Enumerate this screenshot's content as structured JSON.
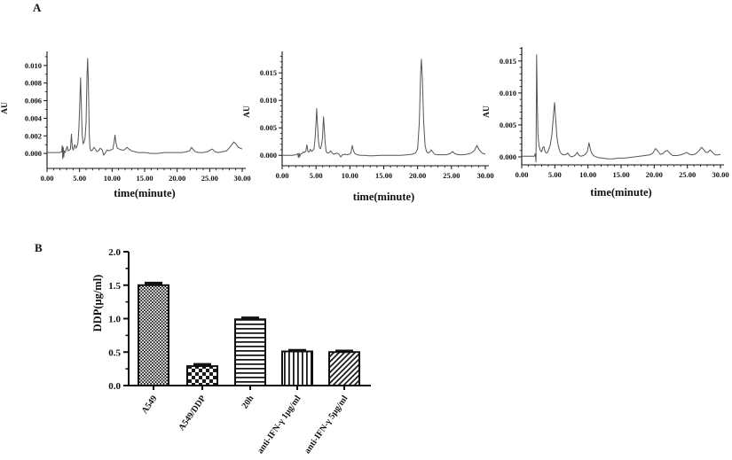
{
  "figure": {
    "panel_a_label": "A",
    "panel_b_label": "B"
  },
  "colors": {
    "trace": "#555555",
    "axis": "#111111",
    "text": "#111111",
    "pattern_ink": "#1a1a1a",
    "background": "#ffffff"
  },
  "chart_data": [
    {
      "id": "chromatogram-1",
      "type": "line",
      "xlabel": "time(minute)",
      "ylabel": "AU",
      "xlim": [
        0,
        30
      ],
      "xtick_values": [
        0,
        5,
        10,
        15,
        20,
        25,
        30
      ],
      "xtick_labels": [
        "0.00",
        "5.00",
        "10.00",
        "15.00",
        "20.00",
        "25.00",
        "30.00"
      ],
      "x_minor_step": 1,
      "ylim": [
        -0.0017,
        0.0116
      ],
      "ytick_values": [
        0,
        0.002,
        0.004,
        0.006,
        0.008,
        0.01
      ],
      "ytick_labels": [
        "0.000",
        "0.002",
        "0.004",
        "0.006",
        "0.008",
        "0.010"
      ],
      "y_minor_step": 0.001,
      "points": [
        [
          0,
          0.0001
        ],
        [
          0.5,
          0.0001
        ],
        [
          1.0,
          0.0001
        ],
        [
          1.5,
          0.0001
        ],
        [
          2.0,
          0.0001
        ],
        [
          2.25,
          0.0002
        ],
        [
          2.35,
          0.0009
        ],
        [
          2.42,
          -0.0006
        ],
        [
          2.5,
          0.0007
        ],
        [
          2.58,
          -0.0004
        ],
        [
          2.65,
          0.0003
        ],
        [
          2.8,
          0.0001
        ],
        [
          3.0,
          0.0006
        ],
        [
          3.1,
          0.0008
        ],
        [
          3.25,
          0.0003
        ],
        [
          3.45,
          0.0004
        ],
        [
          3.6,
          0.0005
        ],
        [
          3.75,
          0.0022
        ],
        [
          3.9,
          0.0006
        ],
        [
          4.05,
          0.0004
        ],
        [
          4.25,
          0.001
        ],
        [
          4.45,
          0.0006
        ],
        [
          4.6,
          0.0008
        ],
        [
          4.75,
          0.0012
        ],
        [
          4.9,
          0.0028
        ],
        [
          5.05,
          0.006
        ],
        [
          5.15,
          0.0086
        ],
        [
          5.25,
          0.006
        ],
        [
          5.4,
          0.0022
        ],
        [
          5.55,
          0.0011
        ],
        [
          5.7,
          0.0013
        ],
        [
          5.85,
          0.0018
        ],
        [
          6.0,
          0.0035
        ],
        [
          6.15,
          0.009
        ],
        [
          6.25,
          0.0108
        ],
        [
          6.35,
          0.008
        ],
        [
          6.5,
          0.002
        ],
        [
          6.6,
          0.0006
        ],
        [
          6.75,
          0.0003
        ],
        [
          7.0,
          0.0004
        ],
        [
          7.2,
          0.0007
        ],
        [
          7.45,
          0.0005
        ],
        [
          7.65,
          0.0002
        ],
        [
          7.9,
          0.0003
        ],
        [
          8.2,
          0.0006
        ],
        [
          8.5,
          0.0004
        ],
        [
          8.7,
          -0.0002
        ],
        [
          8.9,
          0.0
        ],
        [
          9.2,
          0.0004
        ],
        [
          9.5,
          0.0003
        ],
        [
          9.8,
          0.0004
        ],
        [
          10.1,
          0.0005
        ],
        [
          10.3,
          0.0012
        ],
        [
          10.45,
          0.0021
        ],
        [
          10.6,
          0.0012
        ],
        [
          10.8,
          0.0006
        ],
        [
          11.1,
          0.0005
        ],
        [
          11.5,
          0.0004
        ],
        [
          11.9,
          0.0004
        ],
        [
          12.3,
          0.0007
        ],
        [
          12.6,
          0.0005
        ],
        [
          13.0,
          0.0003
        ],
        [
          13.5,
          0.0002
        ],
        [
          14.0,
          0.0001
        ],
        [
          15.0,
          0.0001
        ],
        [
          16.0,
          0.0
        ],
        [
          17.0,
          0.0
        ],
        [
          18.0,
          0.0001
        ],
        [
          19.0,
          0.0001
        ],
        [
          20.0,
          0.0001
        ],
        [
          20.8,
          0.0001
        ],
        [
          21.5,
          0.0002
        ],
        [
          21.9,
          0.0003
        ],
        [
          22.2,
          0.0007
        ],
        [
          22.5,
          0.0004
        ],
        [
          22.8,
          0.0002
        ],
        [
          23.3,
          0.0001
        ],
        [
          24.0,
          0.0001
        ],
        [
          24.7,
          0.0002
        ],
        [
          25.1,
          0.0004
        ],
        [
          25.4,
          0.0005
        ],
        [
          25.8,
          0.0002
        ],
        [
          26.3,
          0.0001
        ],
        [
          27.0,
          0.0002
        ],
        [
          27.6,
          0.0003
        ],
        [
          28.2,
          0.0008
        ],
        [
          28.7,
          0.0013
        ],
        [
          29.0,
          0.0011
        ],
        [
          29.4,
          0.0007
        ],
        [
          29.7,
          0.0006
        ],
        [
          30,
          0.0005
        ]
      ]
    },
    {
      "id": "chromatogram-2",
      "type": "line",
      "xlabel": "time(minute)",
      "ylabel": "AU",
      "xlim": [
        0,
        30
      ],
      "xtick_values": [
        0,
        5,
        10,
        15,
        20,
        25,
        30
      ],
      "xtick_labels": [
        "0.00",
        "5.00",
        "10.00",
        "15.00",
        "20.00",
        "25.00",
        "30.00"
      ],
      "x_minor_step": 1,
      "ylim": [
        -0.0019,
        0.0189
      ],
      "ytick_values": [
        0,
        0.005,
        0.01,
        0.015
      ],
      "ytick_labels": [
        "0.000",
        "0.005",
        "0.010",
        "0.015"
      ],
      "y_minor_step": 0.001,
      "points": [
        [
          0,
          0.0
        ],
        [
          0.5,
          0.0
        ],
        [
          1.0,
          0.0
        ],
        [
          1.5,
          0.0
        ],
        [
          2.0,
          0.0001
        ],
        [
          2.3,
          0.0003
        ],
        [
          2.4,
          -0.0004
        ],
        [
          2.5,
          0.0004
        ],
        [
          2.6,
          -0.0003
        ],
        [
          2.7,
          0.0002
        ],
        [
          2.9,
          0.0003
        ],
        [
          3.1,
          0.0006
        ],
        [
          3.3,
          0.0005
        ],
        [
          3.5,
          0.0008
        ],
        [
          3.65,
          0.0019
        ],
        [
          3.8,
          0.0007
        ],
        [
          4.0,
          0.0006
        ],
        [
          4.15,
          0.0011
        ],
        [
          4.35,
          0.0007
        ],
        [
          4.55,
          0.0009
        ],
        [
          4.7,
          0.0012
        ],
        [
          4.85,
          0.0028
        ],
        [
          5.0,
          0.006
        ],
        [
          5.1,
          0.0085
        ],
        [
          5.2,
          0.006
        ],
        [
          5.35,
          0.0028
        ],
        [
          5.5,
          0.0014
        ],
        [
          5.65,
          0.0012
        ],
        [
          5.8,
          0.0018
        ],
        [
          5.95,
          0.003
        ],
        [
          6.1,
          0.007
        ],
        [
          6.2,
          0.0055
        ],
        [
          6.35,
          0.0022
        ],
        [
          6.5,
          0.0007
        ],
        [
          6.7,
          0.0004
        ],
        [
          6.95,
          0.0005
        ],
        [
          7.15,
          0.0008
        ],
        [
          7.4,
          0.0004
        ],
        [
          7.6,
          0.0002
        ],
        [
          7.85,
          0.0003
        ],
        [
          8.1,
          0.0004
        ],
        [
          8.4,
          0.0002
        ],
        [
          8.65,
          -0.0003
        ],
        [
          8.9,
          0.0001
        ],
        [
          9.2,
          0.0002
        ],
        [
          9.6,
          0.0001
        ],
        [
          9.9,
          0.0002
        ],
        [
          10.15,
          0.0004
        ],
        [
          10.35,
          0.0018
        ],
        [
          10.55,
          0.0008
        ],
        [
          10.75,
          0.0003
        ],
        [
          11.1,
          0.0001
        ],
        [
          11.6,
          0.0
        ],
        [
          12.2,
          0.0
        ],
        [
          12.8,
          -0.0001
        ],
        [
          13.5,
          -0.0001
        ],
        [
          14.5,
          0.0
        ],
        [
          15.5,
          0.0
        ],
        [
          16.5,
          0.0
        ],
        [
          17.5,
          0.0
        ],
        [
          18.5,
          0.0001
        ],
        [
          19.2,
          0.0002
        ],
        [
          19.7,
          0.0004
        ],
        [
          20.0,
          0.0012
        ],
        [
          20.25,
          0.006
        ],
        [
          20.45,
          0.015
        ],
        [
          20.55,
          0.0175
        ],
        [
          20.7,
          0.014
        ],
        [
          20.9,
          0.006
        ],
        [
          21.1,
          0.0018
        ],
        [
          21.3,
          0.0007
        ],
        [
          21.55,
          0.0004
        ],
        [
          21.8,
          0.0006
        ],
        [
          22.0,
          0.001
        ],
        [
          22.25,
          0.0006
        ],
        [
          22.5,
          0.0002
        ],
        [
          22.9,
          0.0001
        ],
        [
          23.5,
          0.0001
        ],
        [
          24.2,
          0.0001
        ],
        [
          24.8,
          0.0003
        ],
        [
          25.15,
          0.0007
        ],
        [
          25.5,
          0.0003
        ],
        [
          26.0,
          0.0001
        ],
        [
          26.6,
          0.0001
        ],
        [
          27.3,
          0.0002
        ],
        [
          27.9,
          0.0004
        ],
        [
          28.4,
          0.0009
        ],
        [
          28.75,
          0.0018
        ],
        [
          29.1,
          0.001
        ],
        [
          29.5,
          0.0004
        ],
        [
          30,
          0.0002
        ]
      ]
    },
    {
      "id": "chromatogram-3",
      "type": "line",
      "xlabel": "time(minute)",
      "ylabel": "AU",
      "xlim": [
        0,
        30
      ],
      "xtick_values": [
        0,
        5,
        10,
        15,
        20,
        25,
        30
      ],
      "xtick_labels": [
        "0.00",
        "5.00",
        "10.00",
        "15.00",
        "20.00",
        "25.00",
        "30.00"
      ],
      "x_minor_step": 1,
      "ylim": [
        -0.00125,
        0.0172
      ],
      "ytick_values": [
        0,
        0.005,
        0.01,
        0.015
      ],
      "ytick_labels": [
        "0.000",
        "0.005",
        "0.010",
        "0.015"
      ],
      "y_minor_step": 0.001,
      "points": [
        [
          0,
          0.0001
        ],
        [
          0.5,
          0.0001
        ],
        [
          1.0,
          0.0001
        ],
        [
          1.5,
          0.0001
        ],
        [
          1.9,
          0.0001
        ],
        [
          2.05,
          0.0005
        ],
        [
          2.15,
          -0.0008
        ],
        [
          2.25,
          0.016
        ],
        [
          2.35,
          0.009
        ],
        [
          2.45,
          0.0035
        ],
        [
          2.6,
          0.0018
        ],
        [
          2.8,
          0.001
        ],
        [
          3.0,
          0.0008
        ],
        [
          3.2,
          0.0015
        ],
        [
          3.35,
          0.0016
        ],
        [
          3.5,
          0.0009
        ],
        [
          3.7,
          0.0006
        ],
        [
          3.9,
          0.0007
        ],
        [
          4.1,
          0.0012
        ],
        [
          4.3,
          0.0018
        ],
        [
          4.55,
          0.0035
        ],
        [
          4.75,
          0.006
        ],
        [
          4.95,
          0.0085
        ],
        [
          5.1,
          0.0062
        ],
        [
          5.3,
          0.0032
        ],
        [
          5.5,
          0.0018
        ],
        [
          5.7,
          0.001
        ],
        [
          5.9,
          0.0006
        ],
        [
          6.1,
          0.0004
        ],
        [
          6.4,
          0.0003
        ],
        [
          6.7,
          0.0004
        ],
        [
          6.95,
          0.0006
        ],
        [
          7.2,
          0.0002
        ],
        [
          7.5,
          0.0
        ],
        [
          7.8,
          0.0001
        ],
        [
          8.1,
          0.0003
        ],
        [
          8.4,
          0.0007
        ],
        [
          8.6,
          0.0003
        ],
        [
          8.9,
          0.0001
        ],
        [
          9.3,
          0.0002
        ],
        [
          9.6,
          0.0004
        ],
        [
          9.9,
          0.0008
        ],
        [
          10.15,
          0.0022
        ],
        [
          10.4,
          0.001
        ],
        [
          10.65,
          0.0004
        ],
        [
          11.0,
          0.0001
        ],
        [
          11.5,
          -0.0001
        ],
        [
          12.2,
          -0.0002
        ],
        [
          13.0,
          -0.0003
        ],
        [
          13.8,
          -0.0003
        ],
        [
          14.6,
          -0.0002
        ],
        [
          15.4,
          -0.0002
        ],
        [
          16.2,
          -0.0001
        ],
        [
          17.0,
          0.0
        ],
        [
          17.8,
          0.0001
        ],
        [
          18.6,
          0.0002
        ],
        [
          19.3,
          0.0003
        ],
        [
          19.8,
          0.0006
        ],
        [
          20.2,
          0.0013
        ],
        [
          20.55,
          0.0009
        ],
        [
          20.9,
          0.0004
        ],
        [
          21.3,
          0.0005
        ],
        [
          21.7,
          0.0009
        ],
        [
          22.0,
          0.001
        ],
        [
          22.4,
          0.0005
        ],
        [
          22.8,
          0.0002
        ],
        [
          23.4,
          0.0002
        ],
        [
          24.0,
          0.0003
        ],
        [
          24.5,
          0.0005
        ],
        [
          24.9,
          0.0007
        ],
        [
          25.3,
          0.0004
        ],
        [
          25.8,
          0.0003
        ],
        [
          26.3,
          0.0005
        ],
        [
          26.8,
          0.001
        ],
        [
          27.15,
          0.0015
        ],
        [
          27.5,
          0.0011
        ],
        [
          27.8,
          0.0007
        ],
        [
          28.1,
          0.0007
        ],
        [
          28.45,
          0.0011
        ],
        [
          28.8,
          0.0007
        ],
        [
          29.2,
          0.0003
        ],
        [
          29.6,
          0.0003
        ],
        [
          30,
          0.0004
        ]
      ]
    },
    {
      "id": "ddp-bar-chart",
      "type": "bar",
      "title": "",
      "xlabel": "",
      "ylabel": "DDP(μg/ml)",
      "categories": [
        "A549",
        "A549/DDP",
        "20h",
        "anti-IFN-γ 1μg/ml",
        "anti-IFN-γ 5μg/ml"
      ],
      "values": [
        1.5,
        0.29,
        0.99,
        0.51,
        0.5
      ],
      "errors": [
        0.03,
        0.025,
        0.02,
        0.015,
        0.015
      ],
      "patterns": [
        "fine-checker",
        "checker",
        "hlines",
        "vlines",
        "diagonal"
      ],
      "ylim": [
        0,
        2.0
      ],
      "ytick_values": [
        0,
        0.5,
        1.0,
        1.5,
        2.0
      ],
      "ytick_labels": [
        "0.0",
        "0.5",
        "1.0",
        "1.5",
        "2.0"
      ],
      "y_minor_step": 0.25,
      "grid": false,
      "legend": "none"
    }
  ]
}
